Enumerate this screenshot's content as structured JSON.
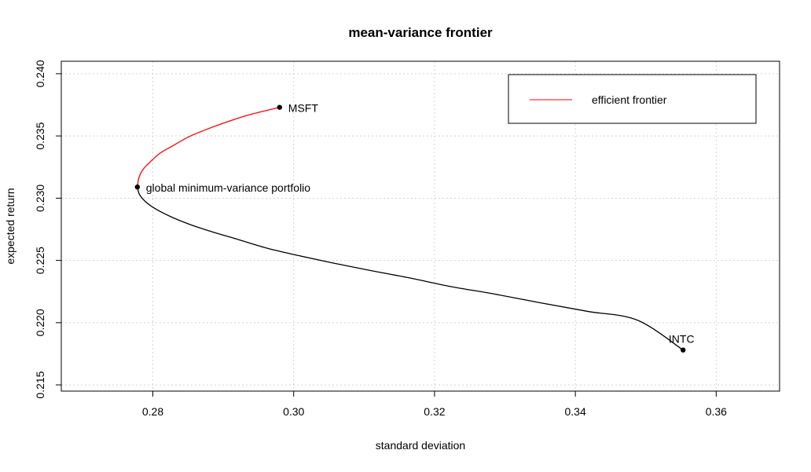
{
  "chart_data": {
    "type": "line",
    "title": "mean-variance frontier",
    "xlabel": "standard deviation",
    "ylabel": "expected return",
    "xlim": [
      0.267,
      0.369
    ],
    "ylim": [
      0.2145,
      0.241
    ],
    "xticks": [
      0.28,
      0.3,
      0.32,
      0.34,
      0.36
    ],
    "xtick_labels": [
      "0.28",
      "0.30",
      "0.32",
      "0.34",
      "0.36"
    ],
    "yticks": [
      0.215,
      0.22,
      0.225,
      0.23,
      0.235,
      0.24
    ],
    "ytick_labels": [
      "0.215",
      "0.220",
      "0.225",
      "0.230",
      "0.235",
      "0.240"
    ],
    "grid": true,
    "legend_position": "top-right",
    "series": [
      {
        "name": "efficient frontier",
        "color": "#ff0000",
        "x": [
          0.2778,
          0.278,
          0.2786,
          0.2796,
          0.281,
          0.2828,
          0.285,
          0.2875,
          0.2904,
          0.2937,
          0.2973,
          0.298
        ],
        "y": [
          0.2309,
          0.2316,
          0.2323,
          0.2329,
          0.2336,
          0.2342,
          0.2349,
          0.2355,
          0.2361,
          0.2367,
          0.2372,
          0.2373
        ]
      },
      {
        "color": "#000000",
        "x": [
          0.2778,
          0.2781,
          0.279,
          0.2805,
          0.2826,
          0.2852,
          0.2884,
          0.292,
          0.2961,
          0.3006,
          0.3055,
          0.3108,
          0.3164,
          0.3223,
          0.3285,
          0.335,
          0.3418,
          0.3488,
          0.3553
        ],
        "y": [
          0.2309,
          0.2303,
          0.2297,
          0.2291,
          0.2285,
          0.2279,
          0.2273,
          0.2267,
          0.226,
          0.2254,
          0.2248,
          0.2242,
          0.2236,
          0.2229,
          0.2223,
          0.2216,
          0.2209,
          0.2202,
          0.2178
        ]
      }
    ],
    "points": [
      {
        "label": "MSFT",
        "x": 0.298,
        "y": 0.2373,
        "label_pos": "right"
      },
      {
        "label": "global minimum-variance portfolio",
        "x": 0.2778,
        "y": 0.2309,
        "label_pos": "right"
      },
      {
        "label": "INTC",
        "x": 0.3553,
        "y": 0.2178,
        "label_pos": "above"
      }
    ],
    "legend": [
      {
        "label": "efficient frontier",
        "color": "#ff0000"
      }
    ]
  }
}
